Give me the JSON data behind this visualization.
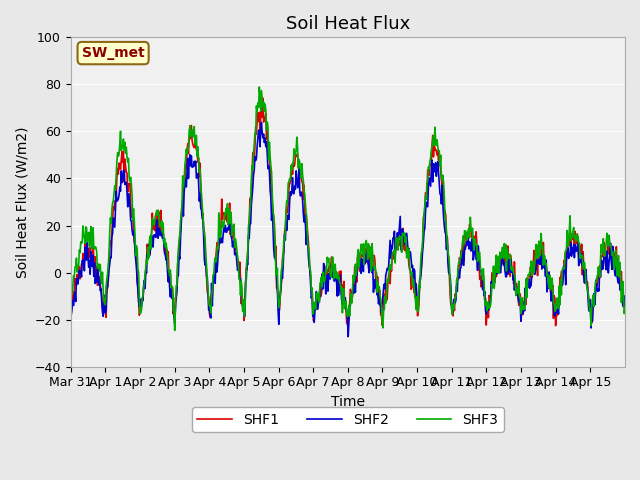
{
  "title": "Soil Heat Flux",
  "ylabel": "Soil Heat Flux (W/m2)",
  "xlabel": "Time",
  "annotation": "SW_met",
  "ylim": [
    -40,
    100
  ],
  "xtick_labels": [
    "Mar 31",
    "Apr 1",
    "Apr 2",
    "Apr 3",
    "Apr 4",
    "Apr 5",
    "Apr 6",
    "Apr 7",
    "Apr 8",
    "Apr 9",
    "Apr 10",
    "Apr 11",
    "Apr 12",
    "Apr 13",
    "Apr 14",
    "Apr 15"
  ],
  "line_colors": [
    "#dd0000",
    "#0000cc",
    "#00aa00"
  ],
  "line_labels": [
    "SHF1",
    "SHF2",
    "SHF3"
  ],
  "line_width": 1.2,
  "bg_color": "#e8e8e8",
  "plot_bg": "#f0f0f0",
  "title_fontsize": 13,
  "label_fontsize": 10,
  "tick_fontsize": 9,
  "legend_fontsize": 10,
  "yticks": [
    -40,
    -20,
    0,
    20,
    40,
    60,
    80,
    100
  ]
}
